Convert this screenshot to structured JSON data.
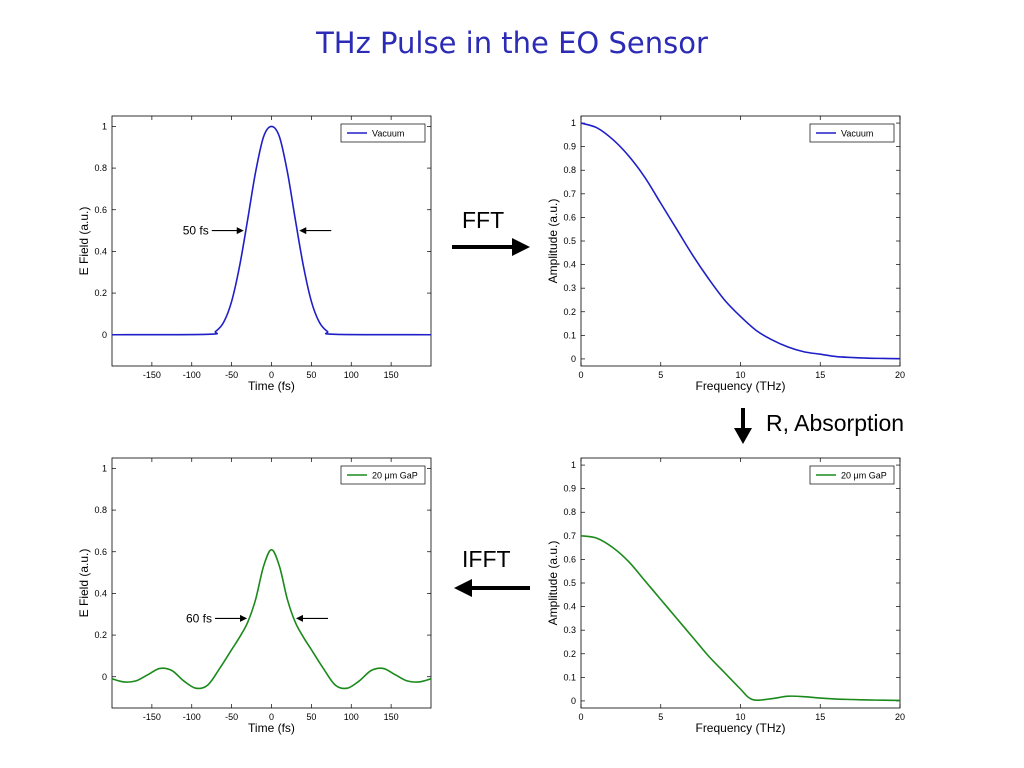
{
  "page_title": "THz Pulse in the EO Sensor",
  "operations": {
    "fft": "FFT",
    "ifft": "IFFT",
    "r_absorption": "R, Absorption"
  },
  "chart_data": [
    {
      "id": "time-vacuum",
      "type": "line",
      "xlabel": "Time (fs)",
      "ylabel": "E Field (a.u.)",
      "xlim": [
        -200,
        200
      ],
      "ylim": [
        -0.15,
        1.05
      ],
      "xticks": [
        -150,
        -100,
        -50,
        0,
        50,
        100,
        150
      ],
      "xtick_labels": [
        "-150",
        "-100",
        "-50",
        "0",
        "50",
        "100",
        "150"
      ],
      "yticks": [
        0,
        0.2,
        0.4,
        0.6,
        0.8,
        1
      ],
      "ytick_labels": [
        "0",
        "0.2",
        "0.4",
        "0.6",
        "0.8",
        "1"
      ],
      "legend": "top-right",
      "series": [
        {
          "name": "Vacuum",
          "color": "#1f1fc8",
          "x": [
            -200,
            -80,
            -70,
            -60,
            -50,
            -40,
            -30,
            -20,
            -10,
            0,
            10,
            20,
            30,
            40,
            50,
            60,
            70,
            80,
            200
          ],
          "y": [
            0,
            0.002,
            0.016,
            0.06,
            0.16,
            0.33,
            0.55,
            0.78,
            0.95,
            1,
            0.95,
            0.78,
            0.55,
            0.33,
            0.16,
            0.06,
            0.016,
            0.002,
            0
          ]
        }
      ],
      "annotation": {
        "text": "50 fs",
        "y": 0.5
      }
    },
    {
      "id": "freq-vacuum",
      "type": "line",
      "xlabel": "Frequency (THz)",
      "ylabel": "Amplitude  (a.u.)",
      "xlim": [
        0,
        20
      ],
      "ylim": [
        -0.03,
        1.03
      ],
      "xticks": [
        0,
        5,
        10,
        15,
        20
      ],
      "xtick_labels": [
        "0",
        "5",
        "10",
        "15",
        "20"
      ],
      "yticks": [
        0,
        0.1,
        0.2,
        0.3,
        0.4,
        0.5,
        0.6,
        0.7,
        0.8,
        0.9,
        1
      ],
      "ytick_labels": [
        "0",
        "0.1",
        "0.2",
        "0.3",
        "0.4",
        "0.5",
        "0.6",
        "0.7",
        "0.8",
        "0.9",
        "1"
      ],
      "legend": "top-right",
      "series": [
        {
          "name": "Vacuum",
          "color": "#1f1fc8",
          "x": [
            0,
            1,
            2,
            3,
            4,
            5,
            6,
            7,
            8,
            9,
            10,
            11,
            12,
            13,
            14,
            15,
            16,
            17,
            18,
            19,
            20
          ],
          "y": [
            1,
            0.98,
            0.93,
            0.86,
            0.77,
            0.66,
            0.55,
            0.44,
            0.34,
            0.25,
            0.18,
            0.12,
            0.08,
            0.05,
            0.03,
            0.02,
            0.01,
            0.006,
            0.003,
            0.002,
            0.001
          ]
        }
      ]
    },
    {
      "id": "freq-gap",
      "type": "line",
      "xlabel": "Frequency (THz)",
      "ylabel": "Amplitude  (a.u.)",
      "xlim": [
        0,
        20
      ],
      "ylim": [
        -0.03,
        1.03
      ],
      "xticks": [
        0,
        5,
        10,
        15,
        20
      ],
      "xtick_labels": [
        "0",
        "5",
        "10",
        "15",
        "20"
      ],
      "yticks": [
        0,
        0.1,
        0.2,
        0.3,
        0.4,
        0.5,
        0.6,
        0.7,
        0.8,
        0.9,
        1
      ],
      "ytick_labels": [
        "0",
        "0.1",
        "0.2",
        "0.3",
        "0.4",
        "0.5",
        "0.6",
        "0.7",
        "0.8",
        "0.9",
        "1"
      ],
      "legend": "top-right",
      "series": [
        {
          "name": "20 μm GaP",
          "color": "#1b8a1b",
          "x": [
            0,
            1,
            2,
            3,
            4,
            5,
            6,
            7,
            8,
            9,
            10,
            10.5,
            11,
            12,
            13,
            14,
            15,
            16,
            17,
            18,
            19,
            20
          ],
          "y": [
            0.7,
            0.69,
            0.65,
            0.59,
            0.51,
            0.43,
            0.35,
            0.27,
            0.19,
            0.12,
            0.05,
            0.015,
            0.003,
            0.01,
            0.02,
            0.018,
            0.012,
            0.008,
            0.006,
            0.004,
            0.003,
            0.002
          ]
        }
      ]
    },
    {
      "id": "time-gap",
      "type": "line",
      "xlabel": "Time (fs)",
      "ylabel": "E Field (a.u.)",
      "xlim": [
        -200,
        200
      ],
      "ylim": [
        -0.15,
        1.05
      ],
      "xticks": [
        -150,
        -100,
        -50,
        0,
        50,
        100,
        150
      ],
      "xtick_labels": [
        "-150",
        "-100",
        "-50",
        "0",
        "50",
        "100",
        "150"
      ],
      "yticks": [
        0,
        0.2,
        0.4,
        0.6,
        0.8,
        1
      ],
      "ytick_labels": [
        "0",
        "0.2",
        "0.4",
        "0.6",
        "0.8",
        "1"
      ],
      "legend": "top-right",
      "series": [
        {
          "name": "20 μm GaP",
          "color": "#1b8a1b",
          "x": [
            -200,
            -185,
            -170,
            -155,
            -140,
            -125,
            -110,
            -95,
            -80,
            -65,
            -50,
            -40,
            -30,
            -20,
            -10,
            0,
            10,
            20,
            30,
            40,
            50,
            65,
            80,
            95,
            110,
            125,
            140,
            155,
            170,
            185,
            200
          ],
          "y": [
            -0.01,
            -0.025,
            -0.02,
            0.01,
            0.04,
            0.03,
            -0.02,
            -0.055,
            -0.04,
            0.04,
            0.13,
            0.19,
            0.26,
            0.37,
            0.53,
            0.61,
            0.53,
            0.37,
            0.26,
            0.19,
            0.13,
            0.04,
            -0.04,
            -0.055,
            -0.02,
            0.03,
            0.04,
            0.01,
            -0.02,
            -0.025,
            -0.01
          ]
        }
      ],
      "annotation": {
        "text": "60 fs",
        "y": 0.28
      }
    }
  ]
}
